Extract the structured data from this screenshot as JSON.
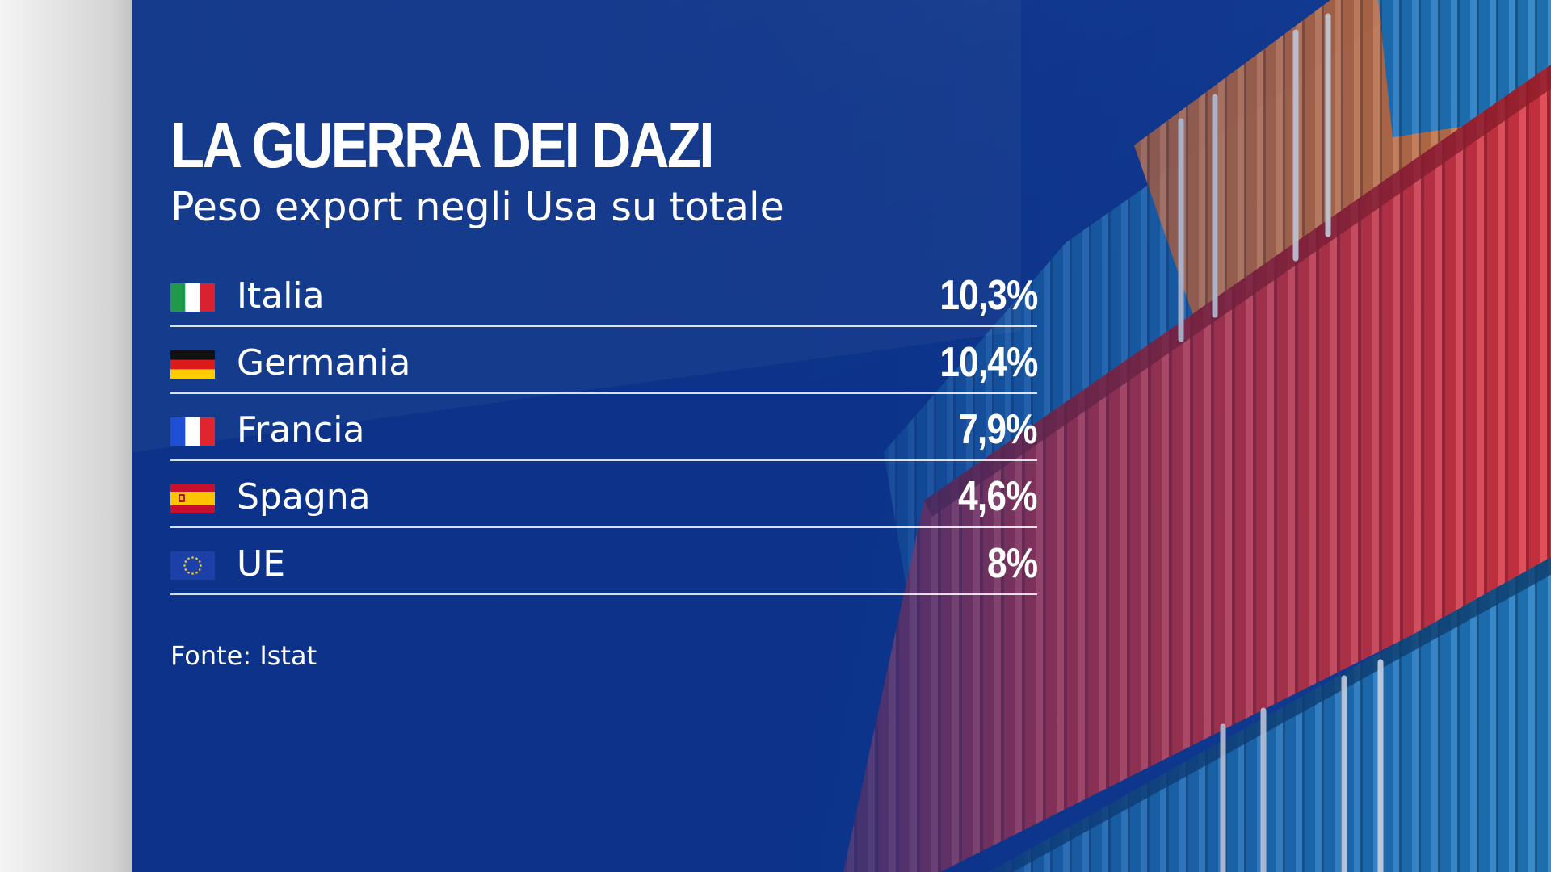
{
  "chart_data": {
    "type": "table",
    "title": "LA GUERRA DEI DAZI",
    "subtitle": "Peso export negli Usa su totale",
    "rows": [
      {
        "country": "Italia",
        "flag": "italy-flag",
        "value": 10.3,
        "label": "10,3%"
      },
      {
        "country": "Germania",
        "flag": "germany-flag",
        "value": 10.4,
        "label": "10,4%"
      },
      {
        "country": "Francia",
        "flag": "france-flag",
        "value": 7.9,
        "label": "7,9%"
      },
      {
        "country": "Spagna",
        "flag": "spain-flag",
        "value": 4.6,
        "label": "4,6%"
      },
      {
        "country": "UE",
        "flag": "eu-flag",
        "value": 8,
        "label": "8%"
      }
    ],
    "source": "Fonte: Istat"
  },
  "colors": {
    "background_blue": "#0a2f86",
    "container_red": "#c8303c",
    "container_blue": "#1f78b8",
    "container_orange": "#c9703a"
  }
}
